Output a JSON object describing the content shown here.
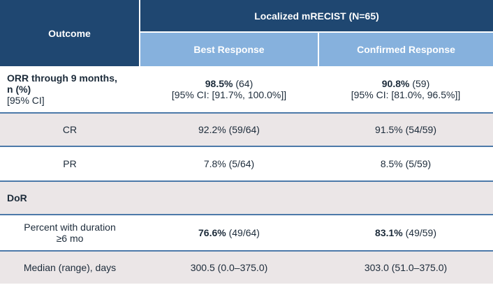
{
  "header": {
    "outcome": "Outcome",
    "group": "Localized mRECIST (N=65)",
    "best": "Best Response",
    "confirmed": "Confirmed Response"
  },
  "rows": {
    "orr": {
      "label_line1": "ORR through 9 months,",
      "label_line2": "n (%)",
      "label_line3": "[95% CI]",
      "best_bold": "98.5%",
      "best_count": " (64)",
      "best_ci": "[95% CI: [91.7%, 100.0%]]",
      "conf_bold": "90.8%",
      "conf_count": " (59)",
      "conf_ci": "[95% CI: [81.0%, 96.5%]]"
    },
    "cr": {
      "label": "CR",
      "best": "92.2% (59/64)",
      "conf": "91.5% (54/59)"
    },
    "pr": {
      "label": "PR",
      "best": "7.8% (5/64)",
      "conf": "8.5% (5/59)"
    },
    "dor": {
      "label": "DoR"
    },
    "pct6": {
      "label_line1": "Percent with duration",
      "label_line2": "≥6 mo",
      "best_bold": "76.6%",
      "best_count": " (49/64)",
      "conf_bold": "83.1%",
      "conf_count": " (49/59)"
    },
    "median": {
      "label": "Median (range), days",
      "best": "300.5 (0.0–375.0)",
      "conf": "303.0 (51.0–375.0)"
    }
  },
  "colors": {
    "header_dark": "#1f4771",
    "header_light": "#86b1dd",
    "row_alt": "#ebe6e7",
    "row_line": "#4c79a9"
  }
}
